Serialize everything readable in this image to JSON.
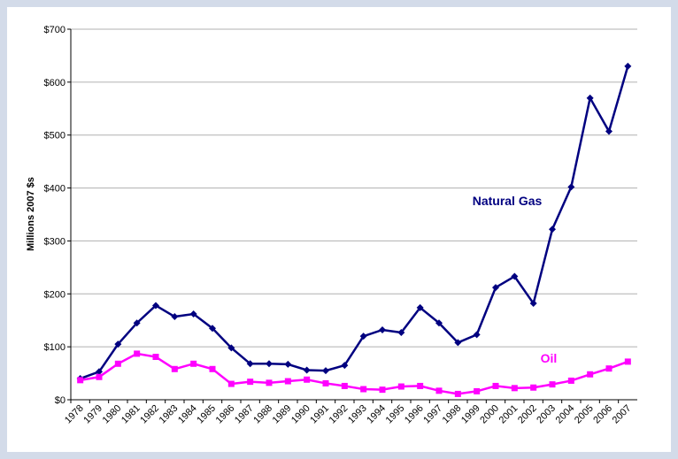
{
  "chart_data": {
    "type": "line",
    "y_label": "Millions 2007 $s",
    "categories": [
      "1978",
      "1979",
      "1980",
      "1981",
      "1982",
      "1983",
      "1984",
      "1985",
      "1986",
      "1987",
      "1988",
      "1989",
      "1990",
      "1991",
      "1992",
      "1993",
      "1994",
      "1995",
      "1996",
      "1997",
      "1998",
      "1999",
      "2000",
      "2001",
      "2002",
      "2003",
      "2004",
      "2005",
      "2006",
      "2007"
    ],
    "series": [
      {
        "name": "Natural Gas",
        "color": "#000080",
        "marker": "diamond",
        "values": [
          40,
          53,
          105,
          145,
          178,
          157,
          162,
          135,
          98,
          68,
          68,
          67,
          56,
          55,
          65,
          120,
          132,
          127,
          174,
          145,
          108,
          123,
          212,
          233,
          182,
          322,
          402,
          570,
          507,
          630
        ]
      },
      {
        "name": "Oil",
        "color": "#ff00ff",
        "marker": "square",
        "values": [
          37,
          43,
          68,
          87,
          81,
          58,
          68,
          58,
          30,
          34,
          32,
          35,
          38,
          31,
          26,
          20,
          19,
          25,
          26,
          17,
          11,
          16,
          26,
          22,
          23,
          29,
          36,
          48,
          59,
          72
        ]
      }
    ],
    "ylim": [
      0,
      700
    ],
    "yticks": [
      {
        "value": 0,
        "label": "$0"
      },
      {
        "value": 100,
        "label": "$100"
      },
      {
        "value": 200,
        "label": "$200"
      },
      {
        "value": 300,
        "label": "$300"
      },
      {
        "value": 400,
        "label": "$400"
      },
      {
        "value": 500,
        "label": "$500"
      },
      {
        "value": 600,
        "label": "$600"
      },
      {
        "value": 700,
        "label": "$700"
      }
    ],
    "grid": true
  }
}
